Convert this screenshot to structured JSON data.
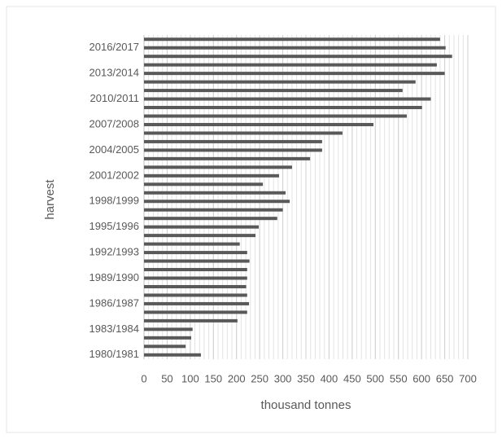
{
  "chart_data": {
    "type": "hbar",
    "x_label": "thousand tonnes",
    "y_label": "harvest",
    "categories": [
      "1980/1981",
      null,
      null,
      "1983/1984",
      null,
      null,
      "1986/1987",
      null,
      null,
      "1989/1990",
      null,
      null,
      "1992/1993",
      null,
      null,
      "1995/1996",
      null,
      null,
      "1998/1999",
      null,
      null,
      "2001/2002",
      null,
      null,
      "2004/2005",
      null,
      null,
      "2007/2008",
      null,
      null,
      "2010/2011",
      null,
      null,
      "2013/2014",
      null,
      null,
      "2016/2017",
      null
    ],
    "values": [
      123,
      90,
      102,
      105,
      202,
      223,
      227,
      223,
      221,
      223,
      223,
      228,
      223,
      207,
      241,
      248,
      288,
      300,
      315,
      306,
      257,
      292,
      320,
      359,
      385,
      385,
      429,
      496,
      568,
      601,
      620,
      559,
      587,
      650,
      633,
      666,
      652,
      640
    ],
    "color": "#595959",
    "xlim": [
      0,
      700
    ],
    "xticks": [
      0,
      50,
      100,
      150,
      200,
      250,
      300,
      350,
      400,
      450,
      500,
      550,
      600,
      650,
      700
    ],
    "grid": true,
    "minor_grid_step": 10
  }
}
